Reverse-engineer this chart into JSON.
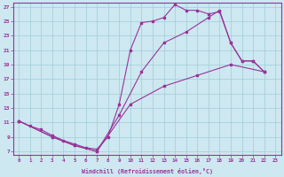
{
  "xlabel": "Windchill (Refroidissement éolien,°C)",
  "bg_color": "#cde8f0",
  "line_color": "#993399",
  "marker_color": "#993399",
  "xlim": [
    -0.5,
    23.5
  ],
  "ylim": [
    6.5,
    27.5
  ],
  "xticks": [
    0,
    1,
    2,
    3,
    4,
    5,
    6,
    7,
    8,
    9,
    10,
    11,
    12,
    13,
    14,
    15,
    16,
    17,
    18,
    19,
    20,
    21,
    22,
    23
  ],
  "yticks": [
    7,
    9,
    11,
    13,
    15,
    17,
    19,
    21,
    23,
    25,
    27
  ],
  "line1": [
    [
      0,
      11.2
    ],
    [
      1,
      10.5
    ],
    [
      2,
      10.0
    ],
    [
      3,
      9.2
    ],
    [
      4,
      8.5
    ],
    [
      5,
      8.0
    ],
    [
      6,
      7.5
    ],
    [
      7,
      7.3
    ],
    [
      8,
      9.0
    ],
    [
      9,
      13.5
    ],
    [
      10,
      21.0
    ],
    [
      11,
      24.8
    ],
    [
      12,
      25.0
    ],
    [
      13,
      25.5
    ],
    [
      14,
      27.3
    ],
    [
      15,
      26.5
    ],
    [
      16,
      26.5
    ],
    [
      17,
      26.0
    ],
    [
      18,
      26.3
    ],
    [
      19,
      22.0
    ],
    [
      20,
      19.5
    ],
    [
      21,
      19.5
    ],
    [
      22,
      18.0
    ]
  ],
  "line2": [
    [
      0,
      11.2
    ],
    [
      3,
      9.0
    ],
    [
      5,
      7.8
    ],
    [
      7,
      7.0
    ],
    [
      10,
      13.5
    ],
    [
      13,
      16.0
    ],
    [
      16,
      17.5
    ],
    [
      19,
      19.0
    ],
    [
      22,
      18.0
    ]
  ],
  "line3": [
    [
      0,
      11.2
    ],
    [
      3,
      9.0
    ],
    [
      5,
      7.8
    ],
    [
      7,
      7.0
    ],
    [
      9,
      12.0
    ],
    [
      11,
      18.0
    ],
    [
      13,
      22.0
    ],
    [
      15,
      23.5
    ],
    [
      17,
      25.5
    ],
    [
      18,
      26.5
    ],
    [
      19,
      22.0
    ],
    [
      20,
      19.5
    ],
    [
      21,
      19.5
    ],
    [
      22,
      18.0
    ]
  ]
}
